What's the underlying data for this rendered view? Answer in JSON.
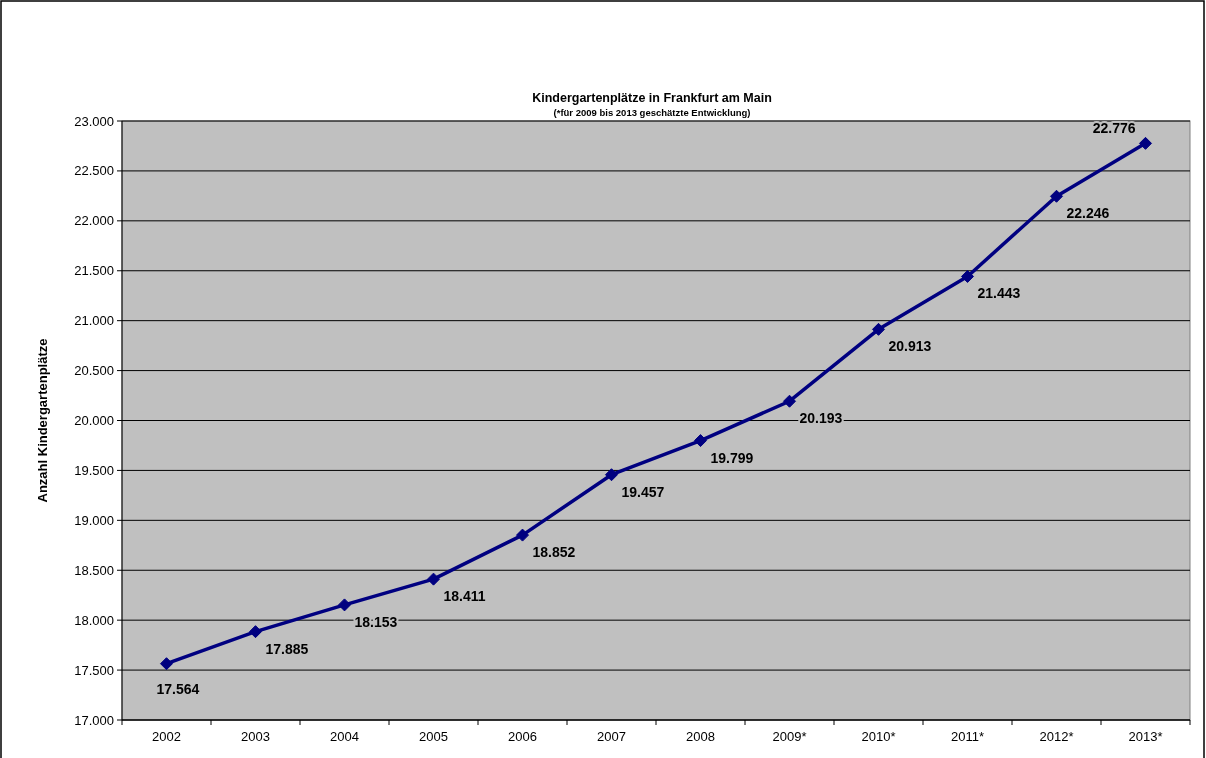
{
  "chart_data": {
    "type": "line",
    "title": "Kindergartenplätze in Frankfurt am Main",
    "subtitle": "(*für 2009 bis 2013 geschätzte Entwicklung)",
    "ylabel": "Anzahl Kindergartenplätze",
    "categories": [
      "2002",
      "2003",
      "2004",
      "2005",
      "2006",
      "2007",
      "2008",
      "2009*",
      "2010*",
      "2011*",
      "2012*",
      "2013*"
    ],
    "series": [
      {
        "color": "#000080",
        "values": [
          17564,
          17885,
          18153,
          18411,
          18852,
          19457,
          19799,
          20193,
          20913,
          21443,
          22246,
          22776
        ],
        "value_labels": [
          "17.564",
          "17.885",
          "18.153",
          "18.411",
          "18.852",
          "19.457",
          "19.799",
          "20.193",
          "20.913",
          "21.443",
          "22.246",
          "22.776"
        ]
      }
    ],
    "ylim": [
      17000,
      23000
    ],
    "yticks": [
      {
        "value": 17000,
        "label": "17.000"
      },
      {
        "value": 17500,
        "label": "17.500"
      },
      {
        "value": 18000,
        "label": "18.000"
      },
      {
        "value": 18500,
        "label": "18.500"
      },
      {
        "value": 19000,
        "label": "19.000"
      },
      {
        "value": 19500,
        "label": "19.500"
      },
      {
        "value": 20000,
        "label": "20.000"
      },
      {
        "value": 20500,
        "label": "20.500"
      },
      {
        "value": 21000,
        "label": "21.000"
      },
      {
        "value": 21500,
        "label": "21.500"
      },
      {
        "value": 22000,
        "label": "22.000"
      },
      {
        "value": 22500,
        "label": "22.500"
      },
      {
        "value": 23000,
        "label": "23.000"
      }
    ],
    "grid": "y",
    "marker": "diamond",
    "line_style": "solid"
  }
}
